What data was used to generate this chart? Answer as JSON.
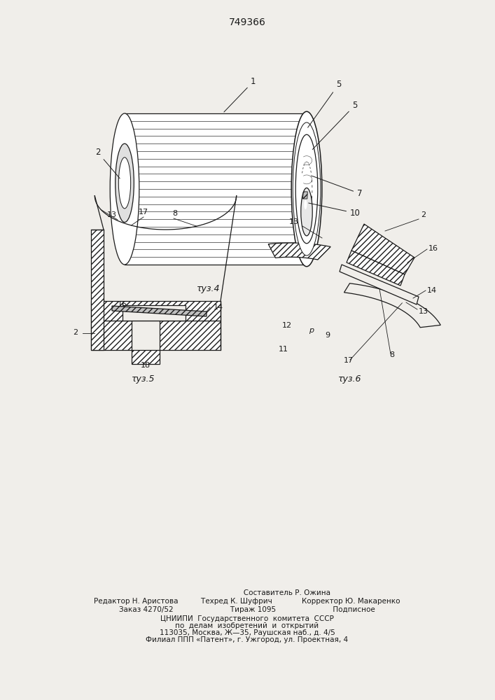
{
  "title_number": "749366",
  "fig4_caption": "τуз.4",
  "fig5_caption": "τуз.5",
  "fig6_caption": "τуз.6",
  "bg_color": "#f0eeea",
  "line_color": "#1a1a1a",
  "footer_line1": "                                   Составитель Р. Ожина",
  "footer_line2": "Редактор Н. Аристова          Техред К. Шуфрич             Корректор Ю. Макаренко",
  "footer_line3": "Заказ 4270/52                         Тираж 1095                         Подписное",
  "footer_line4": "ЦНИИПИ  Государственного  комитета  СССР",
  "footer_line5": "по  делам  изобретений  и  открытий",
  "footer_line6": "113035, Москва, Ж—35, Раушская наб., д. 4/5",
  "footer_line7": "Филиал ППП «Патент», г. Ужгород, ул. Проектная, 4"
}
